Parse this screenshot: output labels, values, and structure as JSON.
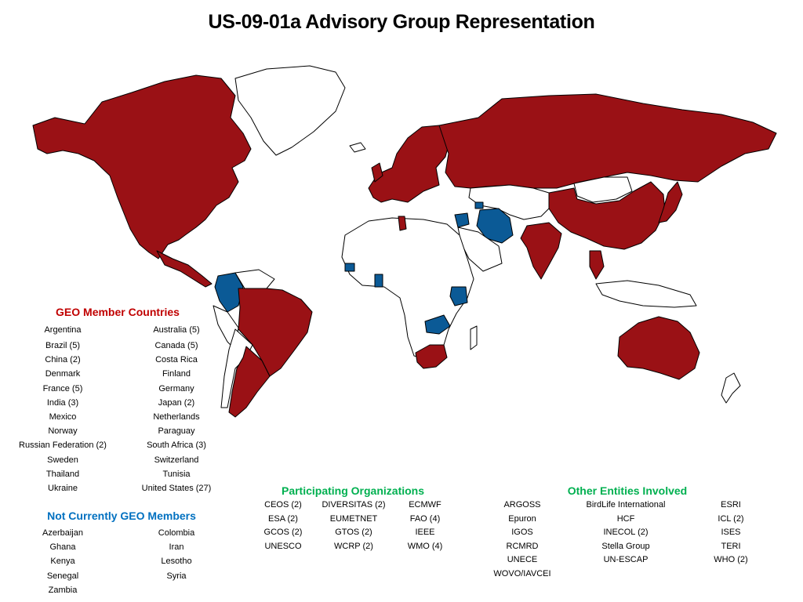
{
  "title": "US-09-01a Advisory Group Representation",
  "colors": {
    "member": "#9a1115",
    "non_member": "#0b5a96",
    "other": "#ffffff",
    "outline": "#000000",
    "member_heading": "#c00000",
    "non_member_heading": "#0070c0",
    "orgs_heading": "#00b050"
  },
  "geo_members": {
    "heading": "GEO Member Countries",
    "col1": [
      "Argentina",
      "Brazil (5)",
      "China (2)",
      "Denmark",
      "France (5)",
      "India (3)",
      "Mexico",
      "Norway",
      "Russian Federation (2)",
      "Sweden",
      "Thailand",
      "Ukraine"
    ],
    "col2": [
      "Australia (5)",
      "Canada (5)",
      "Costa Rica",
      "Finland",
      "Germany",
      "Japan (2)",
      "Netherlands",
      "Paraguay",
      "South Africa (3)",
      "Switzerland",
      "Tunisia",
      "United States (27)"
    ]
  },
  "non_members": {
    "heading": "Not Currently GEO Members",
    "col1": [
      "Azerbaijan",
      "Ghana",
      "Kenya",
      "Senegal",
      "Zambia"
    ],
    "col2": [
      "Colombia",
      "Iran",
      "Lesotho",
      "Syria"
    ]
  },
  "organizations": {
    "heading": "Participating Organizations",
    "col1": [
      "CEOS (2)",
      "ESA (2)",
      "GCOS (2)",
      "UNESCO"
    ],
    "col2": [
      "DIVERSITAS (2)",
      "EUMETNET",
      "GTOS (2)",
      "WCRP (2)"
    ],
    "col3": [
      "ECMWF",
      "FAO (4)",
      "IEEE",
      "WMO (4)"
    ]
  },
  "other_entities": {
    "heading": "Other Entities Involved",
    "col1": [
      "ARGOSS",
      "Epuron",
      "IGOS",
      "RCMRD",
      "UNECE",
      "WOVO/IAVCEI"
    ],
    "col2": [
      "BirdLife International",
      "HCF",
      "INECOL (2)",
      "Stella Group",
      "UN-ESCAP"
    ],
    "col3": [
      "ESRI",
      "ICL (2)",
      "ISES",
      "TERI",
      "WHO (2)"
    ]
  }
}
